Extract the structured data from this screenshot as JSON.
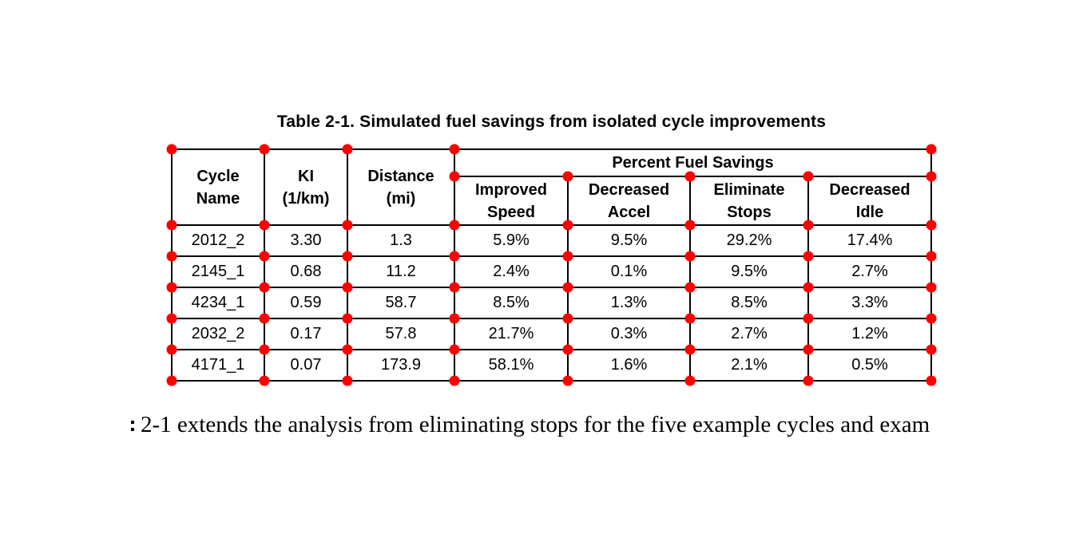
{
  "table": {
    "title": "Table 2-1. Simulated fuel savings from isolated cycle improvements",
    "marker_color": "#ff0000",
    "header": {
      "cycle_name": "Cycle\nName",
      "ki": "KI\n(1/km)",
      "distance": "Distance\n(mi)",
      "percent_fuel_savings": "Percent Fuel Savings",
      "sub_columns": [
        "Improved\nSpeed",
        "Decreased\nAccel",
        "Eliminate\nStops",
        "Decreased\nIdle"
      ]
    },
    "rows": [
      [
        "2012_2",
        "3.30",
        "1.3",
        "5.9%",
        "9.5%",
        "29.2%",
        "17.4%"
      ],
      [
        "2145_1",
        "0.68",
        "11.2",
        "2.4%",
        "0.1%",
        "9.5%",
        "2.7%"
      ],
      [
        "4234_1",
        "0.59",
        "58.7",
        "8.5%",
        "1.3%",
        "8.5%",
        "3.3%"
      ],
      [
        "2032_2",
        "0.17",
        "57.8",
        "21.7%",
        "0.3%",
        "2.7%",
        "1.2%"
      ],
      [
        "4171_1",
        "0.07",
        "173.9",
        "58.1%",
        "1.6%",
        "2.1%",
        "0.5%"
      ]
    ]
  },
  "body_text": {
    "line": "2-1 extends the analysis from eliminating stops for the five example cycles and exam"
  }
}
